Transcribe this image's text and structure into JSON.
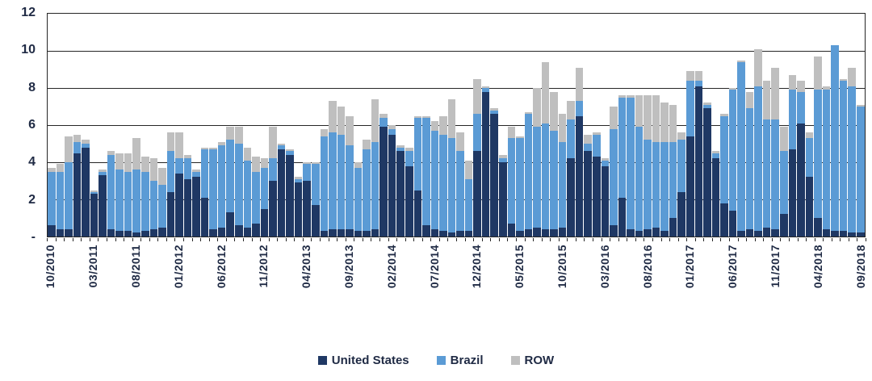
{
  "chart_data": {
    "type": "bar",
    "stacked": true,
    "title": "",
    "xlabel": "",
    "ylabel": "",
    "ylim": [
      0,
      12
    ],
    "grid": true,
    "legend_position": "bottom",
    "label_every": 5,
    "y_ticks": [
      {
        "label": "12",
        "value": 12
      },
      {
        "label": "10",
        "value": 10
      },
      {
        "label": "8",
        "value": 8
      },
      {
        "label": "6",
        "value": 6
      },
      {
        "label": "4",
        "value": 4
      },
      {
        "label": "2",
        "value": 2
      },
      {
        "label": "-",
        "value": 0
      }
    ],
    "categories": [
      "10/2010",
      "11/2010",
      "12/2010",
      "01/2011",
      "02/2011",
      "03/2011",
      "04/2011",
      "05/2011",
      "06/2011",
      "07/2011",
      "08/2011",
      "09/2011",
      "10/2011",
      "11/2011",
      "12/2011",
      "01/2012",
      "02/2012",
      "03/2012",
      "04/2012",
      "05/2012",
      "06/2012",
      "07/2012",
      "08/2012",
      "09/2012",
      "10/2012",
      "11/2012",
      "12/2012",
      "01/2013",
      "02/2013",
      "03/2013",
      "04/2013",
      "05/2013",
      "06/2013",
      "07/2013",
      "08/2013",
      "09/2013",
      "10/2013",
      "11/2013",
      "12/2013",
      "01/2014",
      "02/2014",
      "03/2014",
      "04/2014",
      "05/2014",
      "06/2014",
      "07/2014",
      "08/2014",
      "09/2014",
      "10/2014",
      "11/2014",
      "12/2014",
      "01/2015",
      "02/2015",
      "03/2015",
      "04/2015",
      "05/2015",
      "06/2015",
      "07/2015",
      "08/2015",
      "09/2015",
      "10/2015",
      "11/2015",
      "12/2015",
      "01/2016",
      "02/2016",
      "03/2016",
      "04/2016",
      "05/2016",
      "06/2016",
      "07/2016",
      "08/2016",
      "09/2016",
      "10/2016",
      "11/2016",
      "12/2016",
      "01/2017",
      "02/2017",
      "03/2017",
      "04/2017",
      "05/2017",
      "06/2017",
      "07/2017",
      "08/2017",
      "09/2017",
      "10/2017",
      "11/2017",
      "12/2017",
      "01/2018",
      "02/2018",
      "03/2018",
      "04/2018",
      "05/2018",
      "06/2018",
      "07/2018",
      "08/2018",
      "09/2018"
    ],
    "series": [
      {
        "name": "United States",
        "color": "#1F3864",
        "values": [
          0.6,
          0.4,
          0.4,
          4.5,
          4.8,
          2.3,
          3.3,
          0.4,
          0.3,
          0.3,
          0.2,
          0.3,
          0.4,
          0.5,
          2.4,
          3.4,
          3.1,
          3.2,
          2.1,
          0.4,
          0.5,
          1.3,
          0.6,
          0.5,
          0.7,
          1.5,
          3.0,
          4.7,
          4.4,
          2.9,
          3.0,
          1.7,
          0.3,
          0.4,
          0.4,
          0.4,
          0.3,
          0.3,
          0.4,
          5.9,
          5.5,
          4.6,
          3.8,
          2.5,
          0.6,
          0.4,
          0.3,
          0.2,
          0.3,
          0.3,
          4.6,
          7.8,
          6.6,
          4.0,
          0.7,
          0.3,
          0.4,
          0.5,
          0.4,
          0.4,
          0.5,
          4.2,
          6.5,
          4.6,
          4.3,
          3.8,
          0.6,
          2.1,
          0.4,
          0.3,
          0.4,
          0.5,
          0.3,
          1.0,
          2.4,
          5.4,
          8.1,
          6.9,
          4.2,
          1.8,
          1.4,
          0.3,
          0.4,
          0.3,
          0.5,
          0.4,
          1.2,
          4.7,
          6.1,
          3.2,
          1.0,
          0.4,
          0.3,
          0.3,
          0.2,
          0.2
        ]
      },
      {
        "name": "Brazil",
        "color": "#5B9BD5",
        "values": [
          2.9,
          3.1,
          3.6,
          0.6,
          0.2,
          0.1,
          0.2,
          4.0,
          3.3,
          3.2,
          3.4,
          3.2,
          2.6,
          2.3,
          2.2,
          0.8,
          1.1,
          0.3,
          2.6,
          4.3,
          4.4,
          3.9,
          4.4,
          3.6,
          2.8,
          2.2,
          1.2,
          0.2,
          0.2,
          0.2,
          0.9,
          2.2,
          5.1,
          5.2,
          5.1,
          4.5,
          3.4,
          4.4,
          4.7,
          0.5,
          0.3,
          0.2,
          0.8,
          3.9,
          5.8,
          5.3,
          5.2,
          5.1,
          4.3,
          2.8,
          2.0,
          0.2,
          0.2,
          0.2,
          4.6,
          5.0,
          6.2,
          5.4,
          5.7,
          5.3,
          4.6,
          2.1,
          0.8,
          0.4,
          1.2,
          0.3,
          5.2,
          5.4,
          7.1,
          5.6,
          4.8,
          4.6,
          4.8,
          4.1,
          2.8,
          3.0,
          0.3,
          0.2,
          0.3,
          4.7,
          6.5,
          9.1,
          6.5,
          7.8,
          5.8,
          5.9,
          3.4,
          3.2,
          1.7,
          2.1,
          6.9,
          7.5,
          10.0,
          8.1,
          7.9,
          6.8
        ]
      },
      {
        "name": "ROW",
        "color": "#BFBFBF",
        "values": [
          0.2,
          0.4,
          1.4,
          0.4,
          0.2,
          0.1,
          0.1,
          0.2,
          0.9,
          1.0,
          1.7,
          0.8,
          1.2,
          0.9,
          1.0,
          1.4,
          0.2,
          0.1,
          0.1,
          0.1,
          0.2,
          0.7,
          0.9,
          0.7,
          0.8,
          0.5,
          1.7,
          0.1,
          0.1,
          0.1,
          0.1,
          0.1,
          0.4,
          1.7,
          1.5,
          1.6,
          0.3,
          0.5,
          2.3,
          0.2,
          0.2,
          0.1,
          0.2,
          0.1,
          0.1,
          0.5,
          1.0,
          2.1,
          1.0,
          1.0,
          1.9,
          0.1,
          0.1,
          0.2,
          0.6,
          0.1,
          0.1,
          2.1,
          3.3,
          2.1,
          1.5,
          1.0,
          1.8,
          0.5,
          0.1,
          0.1,
          1.2,
          0.1,
          0.1,
          1.7,
          2.4,
          2.5,
          2.1,
          2.0,
          0.4,
          0.5,
          0.5,
          0.1,
          0.1,
          0.1,
          0.1,
          0.1,
          0.9,
          2.0,
          2.1,
          2.8,
          1.3,
          0.8,
          0.6,
          0.3,
          1.8,
          0.2,
          0.0,
          0.1,
          1.0,
          0.1
        ]
      }
    ]
  }
}
